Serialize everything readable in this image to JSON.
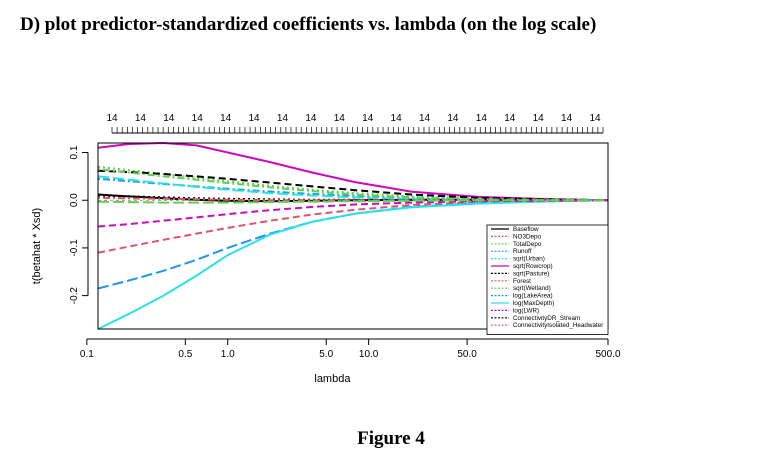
{
  "heading": "D) plot predictor-standardized coefficients vs. lambda (on the log scale)",
  "caption": "Figure 4",
  "chart_data": {
    "type": "line",
    "title": "",
    "xlabel": "lambda",
    "ylabel": "t(betahat * Xsd)",
    "x_scale": "log",
    "x_ticks": [
      "0.1",
      "0.5",
      "1.0",
      "5.0",
      "10.0",
      "50.0",
      "500.0"
    ],
    "y_ticks": [
      "0.1",
      "0.0",
      "-0.1",
      "-0.2"
    ],
    "xlim": [
      0.12,
      500
    ],
    "ylim": [
      -0.27,
      0.12
    ],
    "top_axis_labels": [
      "14",
      "14",
      "14",
      "14",
      "14",
      "14",
      "14",
      "14",
      "14",
      "14",
      "14",
      "14",
      "14",
      "14",
      "14",
      "14",
      "14",
      "14"
    ],
    "legend_position": "bottom-right",
    "x": [
      0.12,
      0.2,
      0.35,
      0.6,
      1.0,
      2.0,
      4.0,
      8.0,
      20.0,
      60.0,
      200.0,
      500.0
    ],
    "series": [
      {
        "name": "Baseflow",
        "color": "#000000",
        "dash": "solid",
        "values": [
          0.012,
          0.008,
          0.004,
          0.001,
          -0.001,
          -0.002,
          -0.001,
          0.0,
          0.001,
          0.001,
          0.0,
          0.0
        ]
      },
      {
        "name": "NO3Depo",
        "color": "#df536b",
        "dash": "dashed",
        "values": [
          -0.11,
          -0.097,
          -0.083,
          -0.07,
          -0.058,
          -0.043,
          -0.03,
          -0.02,
          -0.01,
          -0.004,
          -0.001,
          0.0
        ]
      },
      {
        "name": "TotalDepo",
        "color": "#61d04f",
        "dash": "dotted",
        "values": [
          0.07,
          0.063,
          0.055,
          0.047,
          0.04,
          0.03,
          0.022,
          0.015,
          0.008,
          0.004,
          0.001,
          0.0
        ]
      },
      {
        "name": "Runoff",
        "color": "#2297e6",
        "dash": "dotdash",
        "values": [
          0.045,
          0.04,
          0.034,
          0.029,
          0.024,
          0.018,
          0.013,
          0.009,
          0.005,
          0.002,
          0.001,
          0.0
        ]
      },
      {
        "name": "sqrt(Urban)",
        "color": "#28e2e5",
        "dash": "longdash",
        "values": [
          0.05,
          0.043,
          0.035,
          0.028,
          0.022,
          0.015,
          0.01,
          0.006,
          0.003,
          0.001,
          0.0,
          0.0
        ]
      },
      {
        "name": "sqrt(Rowcrop)",
        "color": "#cd0bbc",
        "dash": "solid",
        "values": [
          0.11,
          0.118,
          0.12,
          0.115,
          0.1,
          0.08,
          0.058,
          0.038,
          0.018,
          0.007,
          0.002,
          0.0
        ]
      },
      {
        "name": "sqrt(Pasture)",
        "color": "#000000",
        "dash": "dashed",
        "values": [
          0.062,
          0.059,
          0.055,
          0.05,
          0.045,
          0.037,
          0.029,
          0.021,
          0.012,
          0.005,
          0.002,
          0.0
        ]
      },
      {
        "name": "Forest",
        "color": "#df536b",
        "dash": "dotted",
        "values": [
          0.01,
          0.008,
          0.006,
          0.004,
          0.002,
          0.001,
          0.0,
          -0.001,
          -0.001,
          0.0,
          0.0,
          0.0
        ]
      },
      {
        "name": "sqrt(Wetland)",
        "color": "#61d04f",
        "dash": "dotdash",
        "values": [
          0.065,
          0.058,
          0.05,
          0.043,
          0.036,
          0.027,
          0.019,
          0.012,
          0.006,
          0.002,
          0.001,
          0.0
        ]
      },
      {
        "name": "log(LakeArea)",
        "color": "#2297e6",
        "dash": "longdash",
        "values": [
          -0.185,
          -0.168,
          -0.148,
          -0.125,
          -0.1,
          -0.07,
          -0.045,
          -0.028,
          -0.014,
          -0.006,
          -0.002,
          0.0
        ]
      },
      {
        "name": "log(MaxDepth)",
        "color": "#28e2e5",
        "dash": "solid",
        "values": [
          -0.27,
          -0.238,
          -0.2,
          -0.158,
          -0.115,
          -0.072,
          -0.045,
          -0.028,
          -0.015,
          -0.007,
          -0.002,
          0.0
        ]
      },
      {
        "name": "log(LWR)",
        "color": "#cd0bbc",
        "dash": "dashed",
        "values": [
          -0.055,
          -0.05,
          -0.043,
          -0.036,
          -0.029,
          -0.021,
          -0.014,
          -0.009,
          -0.005,
          -0.002,
          -0.001,
          0.0
        ]
      },
      {
        "name": "ConnectivityDR_Stream",
        "color": "#000000",
        "dash": "dotted",
        "values": [
          0.01,
          0.008,
          0.006,
          0.004,
          0.003,
          0.002,
          0.001,
          0.001,
          0.0,
          0.0,
          0.0,
          0.0
        ]
      },
      {
        "name": "ConnectivityIsolated_Headwater",
        "color": "#df536b",
        "dash": "dotdash",
        "values": [
          0.005,
          0.004,
          0.003,
          0.002,
          0.001,
          0.0,
          0.0,
          0.0,
          0.0,
          0.0,
          0.0,
          0.0
        ]
      },
      {
        "name": "",
        "color": "#61d04f",
        "dash": "longdash",
        "values": [
          -0.003,
          -0.004,
          -0.005,
          -0.005,
          -0.005,
          -0.004,
          -0.003,
          -0.002,
          -0.001,
          0.0,
          0.0,
          0.0
        ]
      }
    ]
  }
}
